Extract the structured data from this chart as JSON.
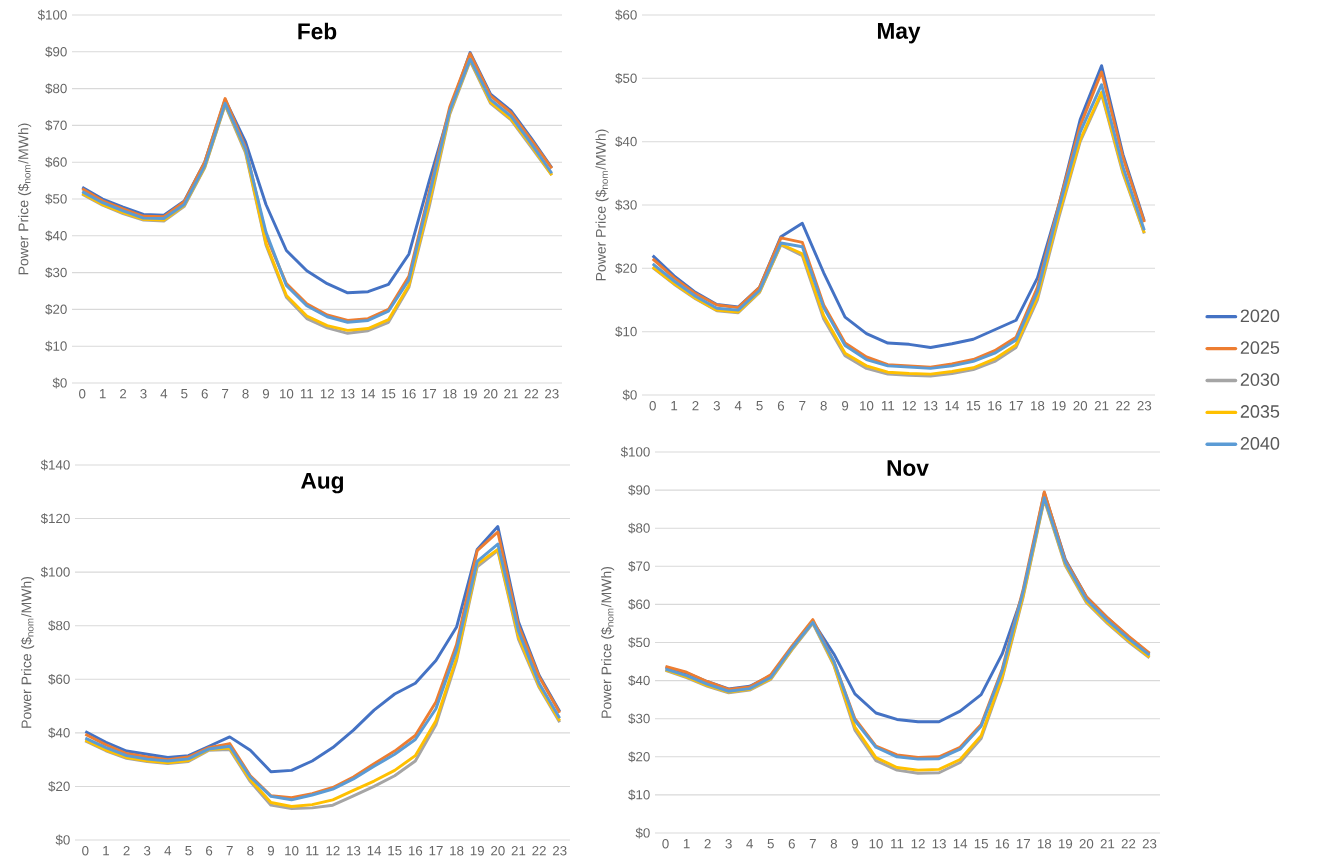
{
  "chart_data": [
    {
      "type": "line",
      "title": "Feb",
      "ylabel": "Power Price ($$_{nom}$/MWh)",
      "grid": "y",
      "legend": false,
      "categories": [
        "0",
        "1",
        "2",
        "3",
        "4",
        "5",
        "6",
        "7",
        "8",
        "9",
        "10",
        "11",
        "12",
        "13",
        "14",
        "15",
        "16",
        "17",
        "18",
        "19",
        "20",
        "21",
        "22",
        "23"
      ],
      "ylim": [
        0,
        100
      ],
      "yticks": [
        {
          "value": 0,
          "label": "$0"
        },
        {
          "value": 10,
          "label": "$10"
        },
        {
          "value": 20,
          "label": "$20"
        },
        {
          "value": 30,
          "label": "$30"
        },
        {
          "value": 40,
          "label": "$40"
        },
        {
          "value": 50,
          "label": "$50"
        },
        {
          "value": 60,
          "label": "$60"
        },
        {
          "value": 70,
          "label": "$70"
        },
        {
          "value": 80,
          "label": "$80"
        },
        {
          "value": 90,
          "label": "$90"
        },
        {
          "value": 100,
          "label": "$100"
        }
      ],
      "series": [
        {
          "color": "#4472c4",
          "values": [
            53.2,
            50,
            47.8,
            45.8,
            45.6,
            49.5,
            60,
            77,
            65.5,
            48.5,
            36,
            30.5,
            27,
            24.5,
            24.8,
            26.8,
            35,
            55,
            74,
            89.8,
            78.5,
            74,
            66.5,
            58.5
          ]
        },
        {
          "color": "#ed7d31",
          "values": [
            52.8,
            49.5,
            47.3,
            45.3,
            45.2,
            49.3,
            60,
            77.3,
            64,
            40,
            27,
            21.5,
            18.5,
            17,
            17.5,
            20,
            29,
            52,
            75,
            89.5,
            78,
            73.5,
            66,
            58.3
          ]
        },
        {
          "color": "#a5a5a5",
          "values": [
            51.3,
            48.3,
            46,
            44.3,
            44,
            48,
            58.5,
            75.5,
            62.5,
            37.5,
            23.3,
            17.5,
            15,
            13.5,
            14.2,
            16.5,
            26,
            48,
            73,
            87.5,
            76,
            71.5,
            64,
            56.5
          ]
        },
        {
          "color": "#ffc000",
          "values": [
            51.5,
            48.5,
            46.3,
            44.5,
            44.3,
            48.3,
            58.7,
            75.8,
            63,
            38,
            23.8,
            18.2,
            15.6,
            14.3,
            14.8,
            17.2,
            26.5,
            49,
            73.5,
            87.8,
            76.3,
            71.8,
            64.5,
            56.5
          ]
        },
        {
          "color": "#5b9bd5",
          "values": [
            52,
            49,
            46.8,
            44.8,
            44.7,
            48.5,
            59,
            76,
            63.5,
            41,
            26.5,
            21,
            18,
            16.5,
            17,
            19.5,
            28,
            51,
            74,
            88,
            77,
            72.5,
            65,
            57
          ]
        }
      ]
    },
    {
      "type": "line",
      "title": "May",
      "ylabel": "Power Price ($$_{nom}$/MWh)",
      "grid": "y",
      "legend": "right",
      "categories": [
        "0",
        "1",
        "2",
        "3",
        "4",
        "5",
        "6",
        "7",
        "8",
        "9",
        "10",
        "11",
        "12",
        "13",
        "14",
        "15",
        "16",
        "17",
        "18",
        "19",
        "20",
        "21",
        "22",
        "23"
      ],
      "ylim": [
        0,
        60
      ],
      "yticks": [
        {
          "value": 0,
          "label": "$0"
        },
        {
          "value": 10,
          "label": "$10"
        },
        {
          "value": 20,
          "label": "$20"
        },
        {
          "value": 30,
          "label": "$30"
        },
        {
          "value": 40,
          "label": "$40"
        },
        {
          "value": 50,
          "label": "$50"
        },
        {
          "value": 60,
          "label": "$60"
        }
      ],
      "series": [
        {
          "name": "2020",
          "color": "#4472c4",
          "values": [
            22,
            18.8,
            16.2,
            14.3,
            13.9,
            17,
            25,
            27.1,
            19.3,
            12.3,
            9.7,
            8.2,
            8,
            7.5,
            8.1,
            8.8,
            10.3,
            11.8,
            18.5,
            30,
            43.5,
            52,
            38,
            27.5
          ]
        },
        {
          "name": "2025",
          "color": "#ed7d31",
          "values": [
            21.5,
            18.5,
            16,
            14.2,
            13.8,
            17,
            24.8,
            24.1,
            14.2,
            8.2,
            6,
            4.8,
            4.6,
            4.4,
            4.9,
            5.6,
            7,
            9.1,
            17,
            30,
            42.5,
            51,
            37.5,
            27.3
          ]
        },
        {
          "name": "2030",
          "color": "#a5a5a5",
          "values": [
            20.1,
            17.5,
            15.2,
            13.3,
            13,
            16.2,
            23.7,
            22,
            12,
            6.2,
            4.2,
            3.3,
            3.1,
            3,
            3.4,
            4,
            5.3,
            7.5,
            15,
            28,
            40,
            47.5,
            35,
            25.5
          ]
        },
        {
          "name": "2035",
          "color": "#ffc000",
          "values": [
            20.2,
            17.6,
            15.3,
            13.4,
            13.1,
            16.3,
            23.8,
            22.3,
            12.5,
            6.6,
            4.6,
            3.6,
            3.4,
            3.3,
            3.7,
            4.3,
            5.7,
            7.9,
            15.5,
            28.5,
            40.3,
            47.8,
            35.3,
            25.6
          ]
        },
        {
          "name": "2040",
          "color": "#5b9bd5",
          "values": [
            20.7,
            18,
            15.6,
            13.7,
            13.4,
            16.5,
            24,
            23.4,
            13.8,
            7.8,
            5.6,
            4.6,
            4.4,
            4.2,
            4.6,
            5.3,
            6.6,
            8.7,
            16.3,
            29.5,
            41.5,
            49,
            36,
            26
          ]
        }
      ]
    },
    {
      "type": "line",
      "title": "Aug",
      "ylabel": "Power Price ($$_{nom}$/MWh)",
      "grid": "y",
      "legend": false,
      "categories": [
        "0",
        "1",
        "2",
        "3",
        "4",
        "5",
        "6",
        "7",
        "8",
        "9",
        "10",
        "11",
        "12",
        "13",
        "14",
        "15",
        "16",
        "17",
        "18",
        "19",
        "20",
        "21",
        "22",
        "23"
      ],
      "ylim": [
        0,
        140
      ],
      "yticks": [
        {
          "value": 0,
          "label": "$0"
        },
        {
          "value": 20,
          "label": "$20"
        },
        {
          "value": 40,
          "label": "$40"
        },
        {
          "value": 60,
          "label": "$60"
        },
        {
          "value": 80,
          "label": "$80"
        },
        {
          "value": 100,
          "label": "$100"
        },
        {
          "value": 120,
          "label": "$120"
        },
        {
          "value": 140,
          "label": "$140"
        }
      ],
      "series": [
        {
          "color": "#4472c4",
          "values": [
            40.5,
            36.5,
            33.2,
            32,
            30.8,
            31.5,
            35,
            38.5,
            33.5,
            25.5,
            26,
            29.5,
            34.5,
            41,
            48.5,
            54.5,
            58.5,
            67,
            79.5,
            108.5,
            117,
            81.5,
            61.5,
            48
          ]
        },
        {
          "color": "#ed7d31",
          "values": [
            39.5,
            35.5,
            32.3,
            31,
            30,
            31,
            34.5,
            36,
            24,
            16.5,
            15.8,
            17.3,
            19.6,
            23.5,
            28.5,
            33.2,
            39,
            51.5,
            73,
            108,
            115,
            80,
            61,
            47.5
          ]
        },
        {
          "color": "#a5a5a5",
          "values": [
            37,
            33.3,
            30.5,
            29.3,
            28.5,
            29.3,
            33.5,
            33.8,
            21.8,
            13,
            11.7,
            12,
            13,
            16.5,
            20,
            24,
            29.5,
            43,
            67,
            102,
            108,
            75,
            57,
            44
          ]
        },
        {
          "color": "#ffc000",
          "values": [
            37.3,
            33.6,
            30.8,
            29.6,
            28.8,
            29.7,
            33.8,
            34.3,
            22.5,
            14,
            12.5,
            13.2,
            15,
            18.5,
            22,
            26,
            31.5,
            44.5,
            68,
            103,
            108.5,
            76,
            57.5,
            44.5
          ]
        },
        {
          "color": "#5b9bd5",
          "values": [
            38,
            34.5,
            31.5,
            30.2,
            29.5,
            30.3,
            34,
            35,
            23.5,
            16.3,
            15,
            16.8,
            19,
            22.8,
            27.5,
            32,
            37.5,
            49,
            71,
            104,
            110.5,
            78,
            58.5,
            45.5
          ]
        }
      ]
    },
    {
      "type": "line",
      "title": "Nov",
      "ylabel": "Power Price ($$_{nom}$/MWh)",
      "grid": "y",
      "legend": false,
      "categories": [
        "0",
        "1",
        "2",
        "3",
        "4",
        "5",
        "6",
        "7",
        "8",
        "9",
        "10",
        "11",
        "12",
        "13",
        "14",
        "15",
        "16",
        "17",
        "18",
        "19",
        "20",
        "21",
        "22",
        "23"
      ],
      "ylim": [
        0,
        100
      ],
      "yticks": [
        {
          "value": 0,
          "label": "$0"
        },
        {
          "value": 10,
          "label": "$10"
        },
        {
          "value": 20,
          "label": "$20"
        },
        {
          "value": 30,
          "label": "$30"
        },
        {
          "value": 40,
          "label": "$40"
        },
        {
          "value": 50,
          "label": "$50"
        },
        {
          "value": 60,
          "label": "$60"
        },
        {
          "value": 70,
          "label": "$70"
        },
        {
          "value": 80,
          "label": "$80"
        },
        {
          "value": 90,
          "label": "$90"
        },
        {
          "value": 100,
          "label": "$100"
        }
      ],
      "series": [
        {
          "color": "#4472c4",
          "values": [
            43.5,
            42,
            39.7,
            37.8,
            38.5,
            41.3,
            48.5,
            55.5,
            47,
            36.5,
            31.5,
            29.8,
            29.2,
            29.2,
            32,
            36.3,
            47,
            63,
            89.3,
            71.8,
            62,
            56.5,
            51.5,
            47
          ]
        },
        {
          "color": "#ed7d31",
          "values": [
            43.7,
            42.2,
            39.7,
            37.7,
            38.3,
            41.5,
            49,
            56,
            45,
            30,
            22.8,
            20.5,
            19.8,
            20,
            22.5,
            28.5,
            43,
            64,
            89.5,
            71.5,
            62,
            56.5,
            51.7,
            47.2
          ]
        },
        {
          "color": "#a5a5a5",
          "values": [
            42.7,
            40.8,
            38.5,
            36.8,
            37.5,
            40.3,
            48,
            55,
            44,
            27,
            19,
            16.5,
            15.7,
            15.8,
            18.5,
            24.8,
            40.5,
            62,
            87.5,
            70.2,
            60.5,
            55,
            50.2,
            46
          ]
        },
        {
          "color": "#ffc000",
          "values": [
            42.8,
            41,
            38.7,
            37,
            37.7,
            40.5,
            48.2,
            55.3,
            44.3,
            27.8,
            19.8,
            17.2,
            16.5,
            16.7,
            19.3,
            25.5,
            41,
            62.5,
            87.8,
            70.5,
            60.8,
            55.3,
            50.5,
            46.2
          ]
        },
        {
          "color": "#5b9bd5",
          "values": [
            43,
            41.3,
            39,
            37.2,
            37.9,
            40.8,
            48.5,
            55.3,
            45,
            29.5,
            22.5,
            20,
            19.4,
            19.5,
            22,
            28,
            42.5,
            63.5,
            88,
            71,
            61.3,
            55.8,
            51,
            46.7
          ]
        }
      ]
    }
  ]
}
